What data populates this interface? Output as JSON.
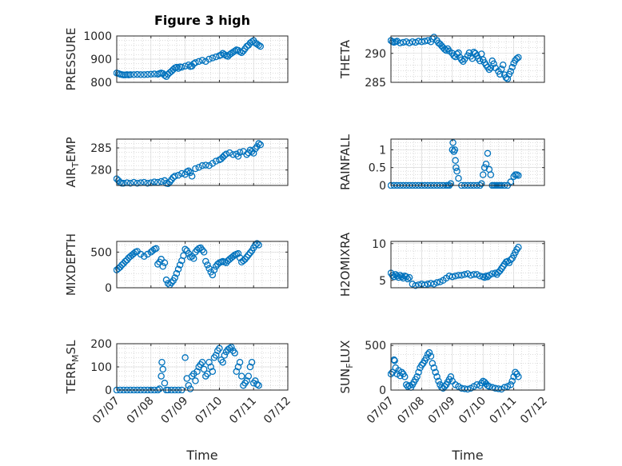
{
  "chart_data": [
    {
      "id": "pressure",
      "type": "scatter",
      "title": "Figure 3 high",
      "ylabel": "PRESSURE",
      "ylabel_sub": "",
      "ylim": [
        800,
        1000
      ],
      "yticks": [
        800,
        900,
        1000
      ],
      "ytick_labels": [
        "800",
        "900",
        "1000"
      ],
      "x": [
        7.0,
        7.05,
        7.1,
        7.15,
        7.2,
        7.25,
        7.3,
        7.35,
        7.4,
        7.5,
        7.6,
        7.7,
        7.8,
        7.9,
        8.0,
        8.1,
        8.2,
        8.25,
        8.3,
        8.35,
        8.4,
        8.45,
        8.5,
        8.55,
        8.6,
        8.65,
        8.7,
        8.75,
        8.8,
        8.85,
        8.9,
        9.0,
        9.1,
        9.15,
        9.2,
        9.25,
        9.3,
        9.4,
        9.5,
        9.6,
        9.7,
        9.8,
        9.9,
        10.0,
        10.05,
        10.1,
        10.15,
        10.2,
        10.25,
        10.3,
        10.35,
        10.4,
        10.45,
        10.5,
        10.55,
        10.6,
        10.65,
        10.7,
        10.75,
        10.8,
        10.85,
        10.9,
        10.95,
        11.0,
        11.05,
        11.1,
        11.15,
        11.2
      ],
      "y": [
        840,
        838,
        835,
        833,
        832,
        832,
        833,
        832,
        833,
        833,
        834,
        833,
        833,
        834,
        835,
        836,
        835,
        838,
        840,
        838,
        830,
        825,
        835,
        842,
        848,
        855,
        862,
        865,
        860,
        867,
        865,
        870,
        875,
        868,
        870,
        880,
        885,
        890,
        895,
        890,
        900,
        905,
        910,
        915,
        918,
        925,
        920,
        915,
        912,
        920,
        925,
        930,
        935,
        940,
        938,
        932,
        928,
        935,
        945,
        955,
        960,
        970,
        975,
        980,
        970,
        965,
        960,
        955
      ]
    },
    {
      "id": "theta",
      "type": "scatter",
      "title": "",
      "ylabel": "THETA",
      "ylabel_sub": "",
      "ylim": [
        285,
        293
      ],
      "yticks": [
        285,
        290
      ],
      "ytick_labels": [
        "285",
        "290"
      ],
      "x": [
        7.0,
        7.05,
        7.1,
        7.15,
        7.2,
        7.3,
        7.4,
        7.5,
        7.6,
        7.7,
        7.8,
        7.9,
        8.0,
        8.1,
        8.2,
        8.3,
        8.35,
        8.4,
        8.5,
        8.55,
        8.6,
        8.65,
        8.7,
        8.75,
        8.8,
        8.85,
        8.9,
        9.0,
        9.05,
        9.1,
        9.15,
        9.2,
        9.25,
        9.3,
        9.35,
        9.4,
        9.5,
        9.55,
        9.6,
        9.65,
        9.7,
        9.75,
        9.8,
        9.85,
        9.9,
        9.95,
        10.0,
        10.05,
        10.1,
        10.15,
        10.2,
        10.25,
        10.3,
        10.35,
        10.4,
        10.5,
        10.55,
        10.6,
        10.65,
        10.7,
        10.75,
        10.8,
        10.85,
        10.9,
        10.95,
        11.0,
        11.05,
        11.1,
        11.15
      ],
      "y": [
        292.2,
        292.0,
        291.9,
        292.0,
        292.1,
        291.8,
        291.9,
        292.0,
        291.8,
        292.0,
        291.9,
        292.1,
        292.0,
        292.1,
        292.2,
        292.0,
        292.5,
        292.8,
        292.2,
        291.8,
        291.6,
        291.3,
        291.0,
        290.7,
        290.5,
        290.8,
        290.4,
        290.0,
        289.6,
        289.4,
        289.9,
        290.1,
        289.3,
        288.9,
        288.6,
        289.0,
        289.6,
        290.1,
        289.5,
        289.1,
        290.2,
        290.0,
        289.6,
        289.1,
        288.7,
        289.9,
        288.9,
        288.4,
        288.0,
        287.6,
        287.2,
        287.5,
        288.7,
        288.2,
        287.5,
        286.9,
        286.4,
        287.3,
        288.0,
        286.3,
        285.8,
        285.6,
        286.4,
        286.9,
        287.6,
        288.3,
        288.8,
        289.1,
        289.3
      ]
    },
    {
      "id": "air_temp",
      "type": "scatter",
      "title": "",
      "ylabel": "AIR",
      "ylabel_sub": "T",
      "ylabel_suffix": "EMP",
      "ylim": [
        276.5,
        287
      ],
      "yticks": [
        280,
        285
      ],
      "ytick_labels": [
        "280",
        "285"
      ],
      "x": [
        7.0,
        7.05,
        7.1,
        7.15,
        7.2,
        7.3,
        7.4,
        7.5,
        7.6,
        7.7,
        7.8,
        7.9,
        8.0,
        8.1,
        8.2,
        8.3,
        8.4,
        8.45,
        8.5,
        8.55,
        8.6,
        8.65,
        8.7,
        8.8,
        8.9,
        9.0,
        9.05,
        9.1,
        9.15,
        9.2,
        9.3,
        9.4,
        9.5,
        9.6,
        9.7,
        9.8,
        9.9,
        10.0,
        10.05,
        10.1,
        10.15,
        10.2,
        10.3,
        10.4,
        10.5,
        10.55,
        10.6,
        10.7,
        10.8,
        10.85,
        10.9,
        10.95,
        11.0,
        11.05,
        11.1,
        11.15,
        11.2
      ],
      "y": [
        278.0,
        277.6,
        277.2,
        277.0,
        277.0,
        277.1,
        277.0,
        277.2,
        277.0,
        277.1,
        277.2,
        277.0,
        277.1,
        277.3,
        277.2,
        277.4,
        277.6,
        277.0,
        276.9,
        277.3,
        277.8,
        278.3,
        278.6,
        278.8,
        279.2,
        279.0,
        279.6,
        279.8,
        279.4,
        278.6,
        280.3,
        280.6,
        281.0,
        281.1,
        281.0,
        281.5,
        282.0,
        282.3,
        282.5,
        282.9,
        283.3,
        283.6,
        283.9,
        283.5,
        283.6,
        283.1,
        284.0,
        284.2,
        283.5,
        283.9,
        284.5,
        284.2,
        283.8,
        284.8,
        285.3,
        286.0,
        285.7
      ]
    },
    {
      "id": "rainfall",
      "type": "scatter",
      "title": "",
      "ylabel": "RAINFALL",
      "ylabel_sub": "",
      "ylim": [
        0,
        1.3
      ],
      "yticks": [
        0,
        0.5,
        1
      ],
      "ytick_labels": [
        "0",
        "0.5",
        "1"
      ],
      "x": [
        7.0,
        7.1,
        7.2,
        7.3,
        7.4,
        7.5,
        7.6,
        7.7,
        7.8,
        7.9,
        8.0,
        8.1,
        8.2,
        8.3,
        8.4,
        8.5,
        8.6,
        8.7,
        8.8,
        8.85,
        8.9,
        8.95,
        9.0,
        9.02,
        9.05,
        9.08,
        9.1,
        9.12,
        9.15,
        9.2,
        9.3,
        9.4,
        9.5,
        9.6,
        9.7,
        9.8,
        9.9,
        9.95,
        10.0,
        10.05,
        10.1,
        10.15,
        10.2,
        10.25,
        10.3,
        10.35,
        10.4,
        10.45,
        10.5,
        10.55,
        10.6,
        10.7,
        10.8,
        10.9,
        11.0,
        11.05,
        11.1,
        11.15
      ],
      "y": [
        0,
        0,
        0,
        0,
        0,
        0,
        0,
        0,
        0,
        0,
        0,
        0,
        0,
        0,
        0,
        0,
        0,
        0,
        0,
        0,
        0,
        0.05,
        1.0,
        1.2,
        0.95,
        1.0,
        0.7,
        0.5,
        0.4,
        0.2,
        0,
        0,
        0,
        0,
        0,
        0,
        0,
        0.05,
        0.3,
        0.5,
        0.6,
        0.9,
        0.45,
        0.3,
        0,
        0,
        0,
        0,
        0,
        0,
        0,
        0,
        0,
        0.1,
        0.25,
        0.3,
        0.3,
        0.28
      ]
    },
    {
      "id": "mixdepth",
      "type": "scatter",
      "title": "",
      "ylabel": "MIXDEPTH",
      "ylabel_sub": "",
      "ylim": [
        0,
        650
      ],
      "yticks": [
        0,
        500
      ],
      "ytick_labels": [
        "0",
        "500"
      ],
      "x": [
        7.0,
        7.05,
        7.1,
        7.15,
        7.2,
        7.25,
        7.3,
        7.35,
        7.4,
        7.45,
        7.5,
        7.55,
        7.6,
        7.7,
        7.8,
        7.9,
        8.0,
        8.05,
        8.1,
        8.15,
        8.2,
        8.25,
        8.3,
        8.35,
        8.4,
        8.45,
        8.5,
        8.55,
        8.6,
        8.65,
        8.7,
        8.75,
        8.8,
        8.85,
        8.9,
        8.95,
        9.0,
        9.05,
        9.1,
        9.15,
        9.2,
        9.25,
        9.3,
        9.35,
        9.4,
        9.45,
        9.5,
        9.55,
        9.6,
        9.65,
        9.7,
        9.75,
        9.8,
        9.85,
        9.9,
        9.95,
        10.0,
        10.05,
        10.1,
        10.15,
        10.2,
        10.25,
        10.3,
        10.35,
        10.4,
        10.45,
        10.5,
        10.55,
        10.6,
        10.65,
        10.7,
        10.75,
        10.8,
        10.85,
        10.9,
        10.95,
        11.0,
        11.05,
        11.1,
        11.15
      ],
      "y": [
        250,
        270,
        290,
        320,
        340,
        370,
        390,
        420,
        440,
        460,
        480,
        500,
        510,
        470,
        440,
        470,
        500,
        520,
        540,
        550,
        330,
        360,
        400,
        300,
        350,
        110,
        60,
        40,
        70,
        100,
        140,
        200,
        260,
        320,
        380,
        450,
        540,
        520,
        480,
        430,
        440,
        410,
        500,
        530,
        550,
        560,
        530,
        500,
        370,
        320,
        270,
        220,
        180,
        250,
        300,
        330,
        350,
        360,
        370,
        360,
        350,
        380,
        400,
        420,
        440,
        460,
        470,
        480,
        420,
        360,
        380,
        400,
        430,
        460,
        490,
        520,
        560,
        600,
        620,
        600
      ]
    },
    {
      "id": "h2omixra",
      "type": "scatter",
      "title": "",
      "ylabel": "H2OMIXRA",
      "ylabel_sub": "",
      "ylim": [
        4,
        10.3
      ],
      "yticks": [
        5,
        10
      ],
      "ytick_labels": [
        "5",
        "10"
      ],
      "x": [
        7.0,
        7.05,
        7.1,
        7.15,
        7.2,
        7.25,
        7.3,
        7.35,
        7.4,
        7.45,
        7.5,
        7.55,
        7.6,
        7.7,
        7.8,
        7.9,
        8.0,
        8.1,
        8.2,
        8.3,
        8.4,
        8.5,
        8.6,
        8.7,
        8.8,
        8.9,
        9.0,
        9.1,
        9.2,
        9.3,
        9.4,
        9.5,
        9.6,
        9.7,
        9.8,
        9.9,
        10.0,
        10.05,
        10.1,
        10.15,
        10.2,
        10.3,
        10.4,
        10.45,
        10.5,
        10.55,
        10.6,
        10.65,
        10.7,
        10.75,
        10.8,
        10.85,
        10.9,
        10.95,
        11.0,
        11.05,
        11.1,
        11.15
      ],
      "y": [
        6.0,
        5.7,
        5.5,
        5.8,
        5.6,
        5.4,
        5.7,
        5.5,
        5.3,
        5.6,
        5.5,
        5.2,
        5.4,
        4.5,
        4.3,
        4.4,
        4.5,
        4.4,
        4.5,
        4.6,
        4.5,
        4.7,
        4.8,
        5.0,
        5.3,
        5.6,
        5.5,
        5.6,
        5.7,
        5.7,
        5.8,
        5.9,
        5.7,
        5.8,
        5.8,
        5.6,
        5.5,
        5.4,
        5.6,
        5.5,
        5.7,
        5.9,
        6.0,
        5.8,
        6.1,
        6.3,
        6.6,
        6.9,
        7.2,
        7.5,
        7.6,
        7.4,
        7.8,
        8.0,
        8.4,
        8.8,
        9.2,
        9.5
      ]
    },
    {
      "id": "terr_msl",
      "type": "scatter",
      "title": "",
      "ylabel": "TERR",
      "ylabel_sub": "M",
      "ylabel_suffix": "SL",
      "ylim": [
        0,
        200
      ],
      "yticks": [
        0,
        100,
        200
      ],
      "ytick_labels": [
        "0",
        "100",
        "200"
      ],
      "x": [
        7.0,
        7.1,
        7.2,
        7.3,
        7.4,
        7.5,
        7.6,
        7.7,
        7.8,
        7.9,
        8.0,
        8.1,
        8.2,
        8.25,
        8.3,
        8.32,
        8.35,
        8.4,
        8.45,
        8.5,
        8.6,
        8.7,
        8.8,
        8.9,
        9.0,
        9.05,
        9.1,
        9.15,
        9.2,
        9.25,
        9.3,
        9.35,
        9.4,
        9.45,
        9.5,
        9.55,
        9.6,
        9.65,
        9.7,
        9.75,
        9.8,
        9.85,
        9.9,
        9.95,
        10.0,
        10.05,
        10.1,
        10.15,
        10.2,
        10.25,
        10.3,
        10.35,
        10.4,
        10.45,
        10.5,
        10.55,
        10.6,
        10.65,
        10.7,
        10.75,
        10.8,
        10.85,
        10.9,
        10.95,
        11.0,
        11.05,
        11.1,
        11.15
      ],
      "y": [
        0,
        0,
        0,
        0,
        0,
        0,
        0,
        0,
        0,
        0,
        0,
        0,
        0,
        5,
        60,
        120,
        90,
        30,
        0,
        0,
        0,
        0,
        0,
        0,
        140,
        50,
        20,
        5,
        60,
        70,
        40,
        80,
        100,
        110,
        120,
        90,
        60,
        70,
        120,
        100,
        80,
        140,
        150,
        170,
        180,
        130,
        120,
        150,
        165,
        175,
        180,
        185,
        170,
        160,
        80,
        100,
        120,
        60,
        20,
        30,
        40,
        60,
        100,
        120,
        30,
        40,
        25,
        20
      ]
    },
    {
      "id": "sun_flux",
      "type": "scatter",
      "title": "",
      "ylabel": "SUN",
      "ylabel_sub": "F",
      "ylabel_suffix": "LUX",
      "ylim": [
        0,
        520
      ],
      "yticks": [
        0,
        500
      ],
      "ytick_labels": [
        "0",
        "500"
      ],
      "x": [
        7.0,
        7.05,
        7.1,
        7.12,
        7.15,
        7.2,
        7.25,
        7.3,
        7.35,
        7.4,
        7.45,
        7.5,
        7.55,
        7.6,
        7.65,
        7.7,
        7.75,
        7.8,
        7.85,
        7.9,
        7.95,
        8.0,
        8.05,
        8.1,
        8.15,
        8.2,
        8.25,
        8.3,
        8.35,
        8.4,
        8.45,
        8.5,
        8.55,
        8.6,
        8.65,
        8.7,
        8.75,
        8.8,
        8.85,
        8.9,
        8.95,
        9.0,
        9.1,
        9.2,
        9.3,
        9.4,
        9.5,
        9.6,
        9.7,
        9.8,
        9.9,
        9.95,
        10.0,
        10.05,
        10.1,
        10.15,
        10.2,
        10.3,
        10.4,
        10.5,
        10.6,
        10.7,
        10.8,
        10.9,
        10.95,
        11.0,
        11.05,
        11.1,
        11.15
      ],
      "y": [
        180,
        200,
        340,
        330,
        250,
        180,
        220,
        160,
        200,
        180,
        150,
        60,
        40,
        50,
        30,
        60,
        90,
        120,
        150,
        200,
        250,
        280,
        300,
        330,
        360,
        400,
        420,
        380,
        300,
        250,
        200,
        150,
        100,
        60,
        30,
        20,
        40,
        60,
        90,
        120,
        150,
        100,
        60,
        40,
        20,
        15,
        10,
        20,
        40,
        60,
        50,
        80,
        100,
        90,
        70,
        50,
        40,
        30,
        20,
        15,
        10,
        30,
        40,
        60,
        100,
        150,
        200,
        180,
        150
      ]
    }
  ],
  "xaxis": {
    "xlim": [
      7.0,
      12.0
    ],
    "ticks": [
      7,
      8,
      9,
      10,
      11,
      12
    ],
    "tick_labels": [
      "07/07",
      "07/08",
      "07/09",
      "07/10",
      "07/11",
      "07/12"
    ],
    "xlabel": "Time"
  },
  "colors": {
    "marker": "#0072BD",
    "axis": "#262626",
    "grid": "#d0d0d0"
  }
}
